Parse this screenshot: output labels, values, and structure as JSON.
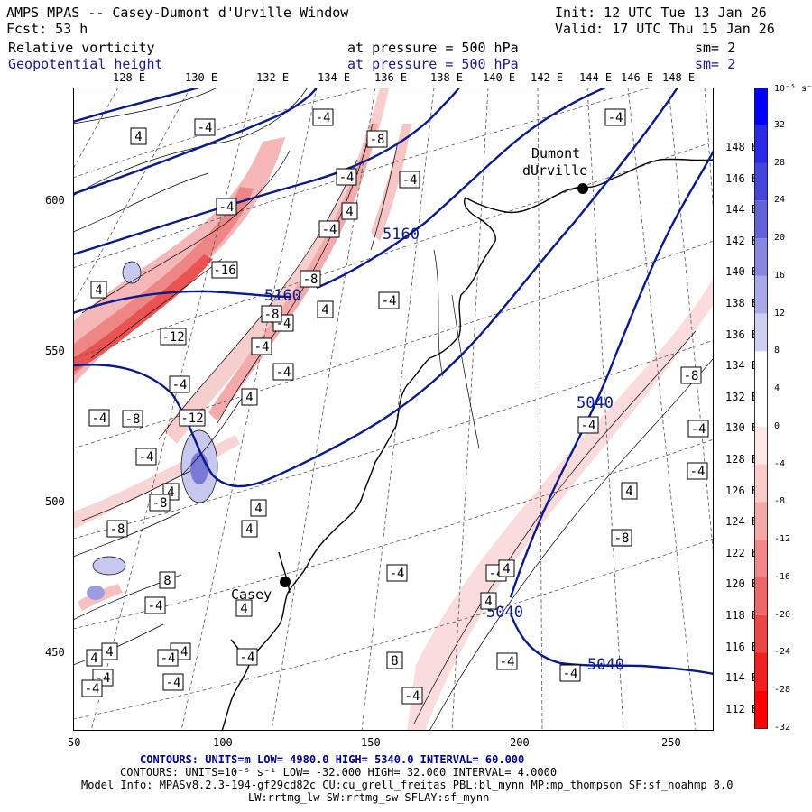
{
  "header": {
    "title": "AMPS MPAS -- Casey-Dumont d'Urville Window",
    "init": "Init: 12 UTC Tue 13 Jan 26",
    "forecast": "Fcst:   53 h",
    "valid": "Valid: 17 UTC Thu 15 Jan 26",
    "field1": {
      "name": "Relative vorticity",
      "level": "at pressure =  500 hPa",
      "smooth": "sm= 2"
    },
    "field2": {
      "name": "Geopotential height",
      "level": "at pressure =  500 hPa",
      "smooth": "sm= 2"
    }
  },
  "top_longitudes": [
    "128 E",
    "130 E",
    "132 E",
    "134 E",
    "136 E",
    "138 E",
    "140 E",
    "142 E",
    "144 E",
    "146 E",
    "148 E"
  ],
  "right_longitudes": [
    "148 E",
    "146 E",
    "144 E",
    "142 E",
    "140 E",
    "138 E",
    "136 E",
    "134 E",
    "132 E",
    "130 E",
    "128 E",
    "126 E",
    "124 E",
    "122 E",
    "120 E",
    "118 E",
    "116 E",
    "114 E",
    "112 E"
  ],
  "x_ticks": [
    "50",
    "100",
    "150",
    "200",
    "250"
  ],
  "y_ticks": [
    "600",
    "550",
    "500",
    "450"
  ],
  "colorbar": {
    "unit_label": "10⁻⁵ s⁻¹",
    "labels": [
      "32",
      "28",
      "24",
      "20",
      "16",
      "12",
      "8",
      "4",
      "0",
      "-4",
      "-8",
      "-12",
      "-16",
      "-20",
      "-24",
      "-28",
      "-32"
    ],
    "colors": [
      "#0000ff",
      "#2a2ae6",
      "#4545dc",
      "#6262d6",
      "#8787df",
      "#a9a9e9",
      "#cfcff4",
      "#ffffff",
      "#ffffff",
      "#fde6e6",
      "#f9caca",
      "#f5a8a8",
      "#f18787",
      "#ee6767",
      "#ec4545",
      "#f02020",
      "#ff0000"
    ]
  },
  "places": [
    {
      "name": "Dumont",
      "name2": "dUrville"
    },
    {
      "name": "Casey"
    }
  ],
  "height_labels": [
    "5160",
    "5160",
    "5040",
    "5040",
    "5040"
  ],
  "vort_labels": [
    "4",
    "-4",
    "-4",
    "-8",
    "-4",
    "-4",
    "-4",
    "4",
    "-4",
    "-16",
    "-8",
    "-4",
    "4",
    "4",
    "-4",
    "-4",
    "-12",
    "-4",
    "-4",
    "-8",
    "-4",
    "-8",
    "-8",
    "-4",
    "-12",
    "4",
    "4",
    "4",
    "8",
    "4",
    "4",
    "-4",
    "-4",
    "-4",
    "-4",
    "4",
    "4",
    "-4",
    "-4",
    "-4",
    "8",
    "-4",
    "-4",
    "-8",
    "-8",
    "-4",
    "4",
    "-4",
    "4",
    "4",
    "-8",
    "-4",
    "-4",
    "-4",
    "-4",
    "-4"
  ],
  "footer": {
    "line1": "CONTOURS:  UNITS=m  LOW=  4980.0        HIGH=  5340.0        INTERVAL=   60.000",
    "line2": "CONTOURS:  UNITS=10⁻⁵ s⁻¹   LOW= -32.000       HIGH=  32.000      INTERVAL=   4.0000",
    "line3": "Model Info: MPASv8.2.3-194-gf29cd82c CU:cu_grell_freitas PBL:bl_mynn MP:mp_thompson SF:sf_noahmp 8.0",
    "line4": "LW:rrtmg_lw SW:rrtmg_sw SFLAY:sf_mynn"
  },
  "colors": {
    "height_contour": "#0a1a8a",
    "title_blue": "#1b1b8c",
    "footer_blue": "#00008b"
  }
}
